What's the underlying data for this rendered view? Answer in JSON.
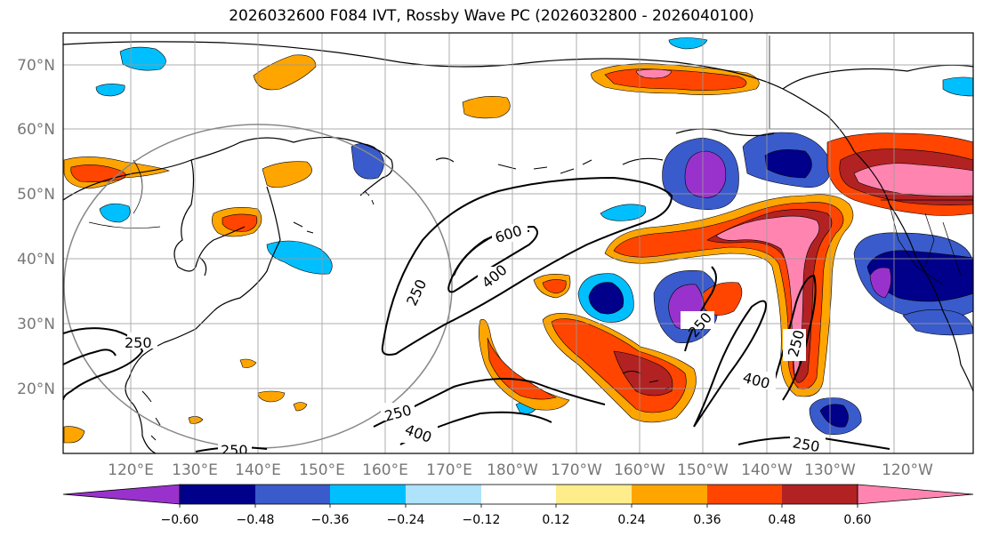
{
  "title": "2026032600 F084 IVT, Rossby Wave PC (2026032800 - 2026040100)",
  "map": {
    "lat_labels": [
      "70°N",
      "60°N",
      "50°N",
      "40°N",
      "30°N",
      "20°N"
    ],
    "lon_labels": [
      "120°E",
      "130°E",
      "140°E",
      "150°E",
      "160°E",
      "170°E",
      "180°W",
      "170°W",
      "160°W",
      "150°W",
      "140°W",
      "130°W",
      "120°W"
    ],
    "contour_labels": [
      "600",
      "400",
      "250",
      "250",
      "250",
      "400",
      "250",
      "250",
      "400",
      "250",
      "250"
    ]
  },
  "colorbar": {
    "colors": [
      "#9932cc",
      "#00008b",
      "#3a5bcc",
      "#00bfff",
      "#aee3fb",
      "#ffffff",
      "#ffec8b",
      "#ffa500",
      "#ff4500",
      "#b22222",
      "#ff85b0"
    ],
    "tick_labels": [
      "−0.60",
      "−0.48",
      "−0.36",
      "−0.24",
      "−0.12",
      "0.12",
      "0.24",
      "0.36",
      "0.48",
      "0.60"
    ]
  }
}
